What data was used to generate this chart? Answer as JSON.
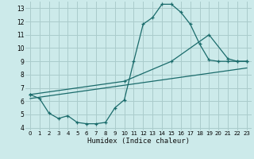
{
  "xlabel": "Humidex (Indice chaleur)",
  "bg_color": "#cceaea",
  "grid_color": "#aacccc",
  "line_color": "#1a6b6b",
  "xlim": [
    -0.5,
    23.5
  ],
  "ylim": [
    3.8,
    13.5
  ],
  "xticks": [
    0,
    1,
    2,
    3,
    4,
    5,
    6,
    7,
    8,
    9,
    10,
    11,
    12,
    13,
    14,
    15,
    16,
    17,
    18,
    19,
    20,
    21,
    22,
    23
  ],
  "yticks": [
    4,
    5,
    6,
    7,
    8,
    9,
    10,
    11,
    12,
    13
  ],
  "series1_x": [
    0,
    1,
    2,
    3,
    4,
    5,
    6,
    7,
    8,
    9,
    10,
    11,
    12,
    13,
    14,
    15,
    16,
    17,
    18,
    19,
    20,
    21,
    22,
    23
  ],
  "series1_y": [
    6.5,
    6.2,
    5.1,
    4.7,
    4.9,
    4.4,
    4.3,
    4.3,
    4.4,
    5.5,
    6.1,
    9.0,
    11.8,
    12.3,
    13.3,
    13.3,
    12.7,
    11.8,
    10.3,
    9.1,
    9.0,
    9.0,
    9.0,
    9.0
  ],
  "series2_x": [
    0,
    10,
    15,
    19,
    21,
    22,
    23
  ],
  "series2_y": [
    6.5,
    7.5,
    9.0,
    11.0,
    9.2,
    9.0,
    9.0
  ],
  "series3_x": [
    0,
    23
  ],
  "series3_y": [
    6.2,
    8.5
  ]
}
